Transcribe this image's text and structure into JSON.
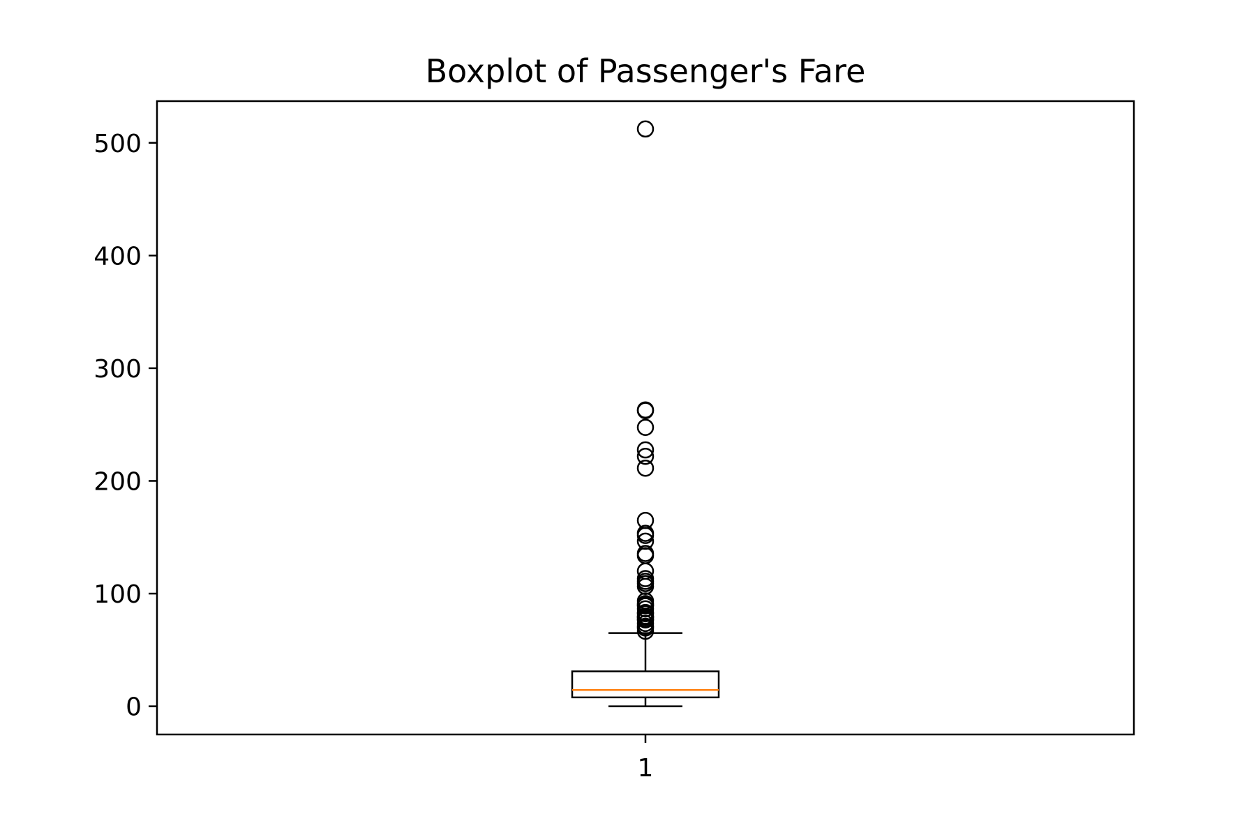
{
  "chart_data": {
    "type": "boxplot",
    "title": "Boxplot of Passenger's Fare",
    "xlabel": "",
    "ylabel": "",
    "ylim": [
      -25,
      537
    ],
    "yticks": [
      0,
      100,
      200,
      300,
      400,
      500
    ],
    "grid": false,
    "legend": "none",
    "colors": {
      "box": "#000000",
      "median": "#ff7f0e",
      "flier": "#000000"
    },
    "boxes": [
      {
        "label": "1",
        "whisker_low": 0,
        "q1": 7.9,
        "median": 14.45,
        "q3": 31.0,
        "whisker_high": 65.0,
        "fliers": [
          66.6,
          69.5,
          71.0,
          73.5,
          76.7,
          77.3,
          78.85,
          79.2,
          80.0,
          82.2,
          83.2,
          86.5,
          89.1,
          90.0,
          91.1,
          93.5,
          106.4,
          108.9,
          110.9,
          113.3,
          120.0,
          133.7,
          135.6,
          146.5,
          151.6,
          153.5,
          164.9,
          211.3,
          221.8,
          227.5,
          247.5,
          262.4,
          263.0,
          512.3
        ]
      }
    ]
  }
}
